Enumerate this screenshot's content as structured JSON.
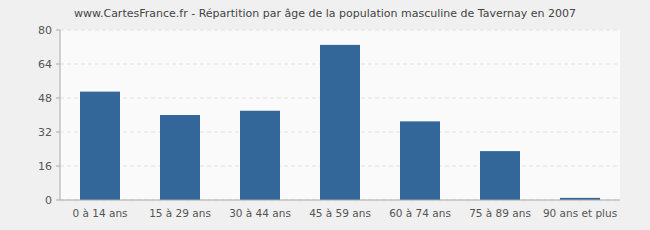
{
  "chart_data": {
    "type": "bar",
    "title": "www.CartesFrance.fr - Répartition par âge de la population masculine de Tavernay en 2007",
    "categories": [
      "0 à 14 ans",
      "15 à 29 ans",
      "30 à 44 ans",
      "45 à 59 ans",
      "60 à 74 ans",
      "75 à 89 ans",
      "90 ans et plus"
    ],
    "values": [
      51,
      40,
      42,
      73,
      37,
      23,
      1
    ],
    "color": "#336699",
    "ylim": [
      0,
      80
    ],
    "yticks": [
      0,
      16,
      32,
      48,
      64,
      80
    ],
    "grid": true
  }
}
